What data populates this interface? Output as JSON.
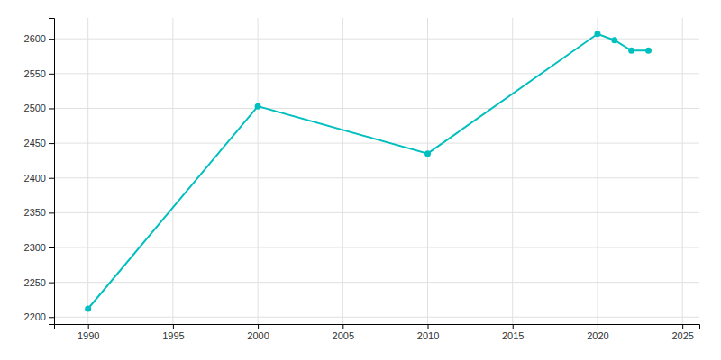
{
  "chart_data": {
    "type": "line",
    "x": [
      1990,
      2000,
      2010,
      2020,
      2021,
      2022,
      2023
    ],
    "values": [
      2212,
      2503,
      2435,
      2607,
      2598,
      2583,
      2583
    ],
    "color": "#00BFBF",
    "marker": "circle",
    "xlim": [
      1988,
      2026
    ],
    "ylim": [
      2190,
      2630
    ],
    "xticks": [
      1990,
      1995,
      2000,
      2005,
      2010,
      2015,
      2020,
      2025
    ],
    "yticks": [
      2200,
      2250,
      2300,
      2350,
      2400,
      2450,
      2500,
      2550,
      2600
    ],
    "grid": true
  }
}
